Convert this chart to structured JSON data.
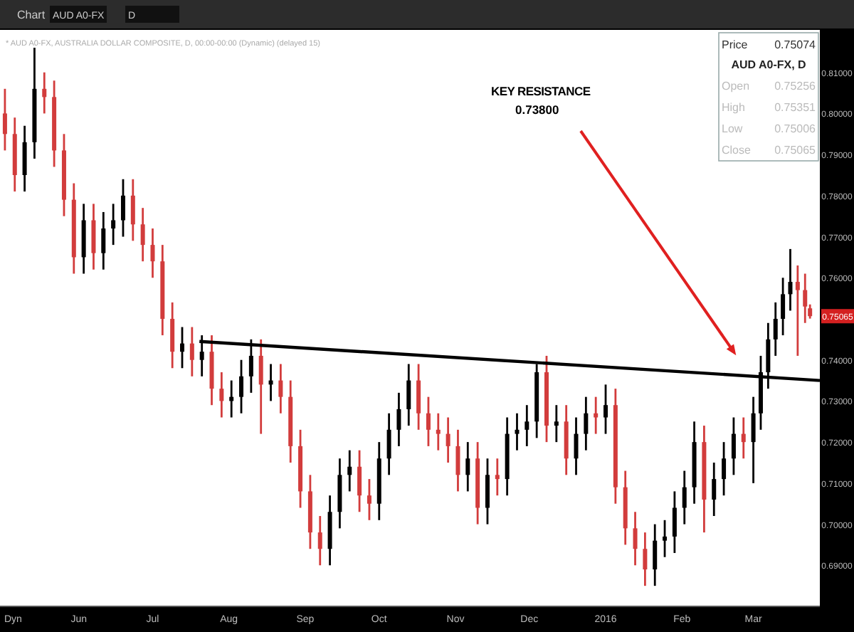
{
  "chart_data": {
    "type": "candlestick",
    "title": "* AUD A0-FX, AUSTRALIA DOLLAR COMPOSITE, D, 00:00-00:00 (Dynamic) (delayed 15)",
    "x": [
      "2015-05-02",
      "2015-05-06",
      "2015-05-10",
      "2015-05-14",
      "2015-05-18",
      "2015-05-22",
      "2015-05-26",
      "2015-05-30",
      "2015-06-03",
      "2015-06-07",
      "2015-06-11",
      "2015-06-15",
      "2015-06-19",
      "2015-06-23",
      "2015-06-27",
      "2015-07-01",
      "2015-07-05",
      "2015-07-09",
      "2015-07-13",
      "2015-07-17",
      "2015-07-21",
      "2015-07-25",
      "2015-07-29",
      "2015-08-02",
      "2015-08-06",
      "2015-08-10",
      "2015-08-14",
      "2015-08-18",
      "2015-08-22",
      "2015-08-26",
      "2015-08-30",
      "2015-09-03",
      "2015-09-07",
      "2015-09-11",
      "2015-09-15",
      "2015-09-19",
      "2015-09-23",
      "2015-09-27",
      "2015-10-01",
      "2015-10-05",
      "2015-10-09",
      "2015-10-13",
      "2015-10-17",
      "2015-10-21",
      "2015-10-25",
      "2015-10-29",
      "2015-11-02",
      "2015-11-06",
      "2015-11-10",
      "2015-11-14",
      "2015-11-18",
      "2015-11-22",
      "2015-11-26",
      "2015-11-30",
      "2015-12-04",
      "2015-12-08",
      "2015-12-12",
      "2015-12-16",
      "2015-12-20",
      "2015-12-24",
      "2015-12-28",
      "2016-01-01",
      "2016-01-05",
      "2016-01-09",
      "2016-01-13",
      "2016-01-17",
      "2016-01-21",
      "2016-01-25",
      "2016-01-29",
      "2016-02-02",
      "2016-02-06",
      "2016-02-10",
      "2016-02-14",
      "2016-02-18",
      "2016-02-22",
      "2016-02-26",
      "2016-03-01",
      "2016-03-04",
      "2016-03-07",
      "2016-03-10",
      "2016-03-13",
      "2016-03-16",
      "2016-03-19",
      "2016-03-22",
      "2016-03-24"
    ],
    "ohlc": [
      [
        0.8,
        0.806,
        0.791,
        0.795
      ],
      [
        0.795,
        0.799,
        0.781,
        0.785
      ],
      [
        0.785,
        0.797,
        0.781,
        0.793
      ],
      [
        0.793,
        0.816,
        0.789,
        0.806
      ],
      [
        0.806,
        0.81,
        0.8,
        0.804
      ],
      [
        0.804,
        0.808,
        0.787,
        0.791
      ],
      [
        0.791,
        0.795,
        0.775,
        0.779
      ],
      [
        0.779,
        0.783,
        0.761,
        0.765
      ],
      [
        0.765,
        0.778,
        0.761,
        0.774
      ],
      [
        0.774,
        0.778,
        0.762,
        0.766
      ],
      [
        0.766,
        0.776,
        0.762,
        0.772
      ],
      [
        0.772,
        0.778,
        0.768,
        0.774
      ],
      [
        0.774,
        0.784,
        0.77,
        0.78
      ],
      [
        0.78,
        0.784,
        0.769,
        0.773
      ],
      [
        0.773,
        0.777,
        0.764,
        0.768
      ],
      [
        0.768,
        0.772,
        0.76,
        0.764
      ],
      [
        0.764,
        0.768,
        0.746,
        0.75
      ],
      [
        0.75,
        0.754,
        0.738,
        0.742
      ],
      [
        0.742,
        0.748,
        0.738,
        0.744
      ],
      [
        0.744,
        0.748,
        0.736,
        0.74
      ],
      [
        0.74,
        0.746,
        0.736,
        0.742
      ],
      [
        0.742,
        0.746,
        0.729,
        0.733
      ],
      [
        0.733,
        0.737,
        0.726,
        0.73
      ],
      [
        0.73,
        0.735,
        0.726,
        0.731
      ],
      [
        0.731,
        0.74,
        0.727,
        0.736
      ],
      [
        0.736,
        0.745,
        0.732,
        0.741
      ],
      [
        0.741,
        0.745,
        0.722,
        0.734
      ],
      [
        0.734,
        0.739,
        0.73,
        0.735
      ],
      [
        0.735,
        0.739,
        0.727,
        0.731
      ],
      [
        0.731,
        0.735,
        0.715,
        0.719
      ],
      [
        0.719,
        0.723,
        0.704,
        0.708
      ],
      [
        0.708,
        0.712,
        0.694,
        0.698
      ],
      [
        0.698,
        0.702,
        0.69,
        0.694
      ],
      [
        0.694,
        0.707,
        0.69,
        0.703
      ],
      [
        0.703,
        0.716,
        0.699,
        0.712
      ],
      [
        0.712,
        0.718,
        0.708,
        0.714
      ],
      [
        0.714,
        0.718,
        0.703,
        0.707
      ],
      [
        0.707,
        0.711,
        0.701,
        0.705
      ],
      [
        0.705,
        0.72,
        0.701,
        0.716
      ],
      [
        0.716,
        0.727,
        0.712,
        0.723
      ],
      [
        0.723,
        0.732,
        0.719,
        0.728
      ],
      [
        0.728,
        0.739,
        0.724,
        0.735
      ],
      [
        0.735,
        0.739,
        0.723,
        0.727
      ],
      [
        0.727,
        0.731,
        0.719,
        0.723
      ],
      [
        0.723,
        0.727,
        0.718,
        0.722
      ],
      [
        0.722,
        0.726,
        0.715,
        0.719
      ],
      [
        0.719,
        0.723,
        0.708,
        0.712
      ],
      [
        0.712,
        0.72,
        0.708,
        0.716
      ],
      [
        0.716,
        0.72,
        0.7,
        0.704
      ],
      [
        0.704,
        0.716,
        0.7,
        0.712
      ],
      [
        0.712,
        0.716,
        0.707,
        0.711
      ],
      [
        0.711,
        0.726,
        0.707,
        0.722
      ],
      [
        0.722,
        0.727,
        0.718,
        0.723
      ],
      [
        0.723,
        0.729,
        0.719,
        0.725
      ],
      [
        0.725,
        0.739,
        0.721,
        0.737
      ],
      [
        0.737,
        0.741,
        0.72,
        0.724
      ],
      [
        0.724,
        0.729,
        0.72,
        0.725
      ],
      [
        0.725,
        0.729,
        0.712,
        0.716
      ],
      [
        0.716,
        0.726,
        0.712,
        0.722
      ],
      [
        0.722,
        0.731,
        0.718,
        0.727
      ],
      [
        0.727,
        0.731,
        0.722,
        0.726
      ],
      [
        0.726,
        0.734,
        0.722,
        0.729
      ],
      [
        0.729,
        0.733,
        0.705,
        0.709
      ],
      [
        0.709,
        0.713,
        0.695,
        0.699
      ],
      [
        0.699,
        0.703,
        0.69,
        0.694
      ],
      [
        0.694,
        0.698,
        0.685,
        0.689
      ],
      [
        0.689,
        0.7,
        0.685,
        0.696
      ],
      [
        0.696,
        0.701,
        0.692,
        0.697
      ],
      [
        0.697,
        0.708,
        0.693,
        0.704
      ],
      [
        0.704,
        0.713,
        0.7,
        0.709
      ],
      [
        0.709,
        0.725,
        0.705,
        0.72
      ],
      [
        0.72,
        0.724,
        0.698,
        0.706
      ],
      [
        0.706,
        0.715,
        0.702,
        0.711
      ],
      [
        0.711,
        0.72,
        0.707,
        0.716
      ],
      [
        0.716,
        0.726,
        0.712,
        0.722
      ],
      [
        0.722,
        0.726,
        0.716,
        0.72
      ],
      [
        0.72,
        0.731,
        0.71,
        0.727
      ],
      [
        0.727,
        0.741,
        0.723,
        0.737
      ],
      [
        0.737,
        0.749,
        0.733,
        0.745
      ],
      [
        0.745,
        0.754,
        0.741,
        0.75
      ],
      [
        0.75,
        0.76,
        0.746,
        0.756
      ],
      [
        0.756,
        0.767,
        0.752,
        0.759
      ],
      [
        0.759,
        0.763,
        0.741,
        0.757
      ],
      [
        0.757,
        0.761,
        0.749,
        0.753
      ],
      [
        0.75256,
        0.75351,
        0.75006,
        0.75065
      ]
    ],
    "colors": [
      "#d23c3c",
      "#d23c3c",
      "#000000",
      "#000000",
      "#d23c3c",
      "#d23c3c",
      "#d23c3c",
      "#d23c3c",
      "#000000",
      "#d23c3c",
      "#000000",
      "#000000",
      "#000000",
      "#d23c3c",
      "#d23c3c",
      "#d23c3c",
      "#d23c3c",
      "#d23c3c",
      "#000000",
      "#d23c3c",
      "#000000",
      "#d23c3c",
      "#d23c3c",
      "#000000",
      "#000000",
      "#000000",
      "#d23c3c",
      "#000000",
      "#d23c3c",
      "#d23c3c",
      "#d23c3c",
      "#d23c3c",
      "#d23c3c",
      "#000000",
      "#000000",
      "#000000",
      "#d23c3c",
      "#d23c3c",
      "#000000",
      "#000000",
      "#000000",
      "#000000",
      "#d23c3c",
      "#d23c3c",
      "#d23c3c",
      "#d23c3c",
      "#d23c3c",
      "#000000",
      "#d23c3c",
      "#000000",
      "#d23c3c",
      "#000000",
      "#000000",
      "#000000",
      "#000000",
      "#d23c3c",
      "#000000",
      "#d23c3c",
      "#000000",
      "#000000",
      "#d23c3c",
      "#000000",
      "#d23c3c",
      "#d23c3c",
      "#d23c3c",
      "#d23c3c",
      "#000000",
      "#000000",
      "#000000",
      "#000000",
      "#000000",
      "#d23c3c",
      "#000000",
      "#000000",
      "#000000",
      "#d23c3c",
      "#000000",
      "#000000",
      "#000000",
      "#000000",
      "#000000",
      "#000000",
      "#d23c3c",
      "#d23c3c",
      "#d23c3c"
    ],
    "series": [
      {
        "type": "line",
        "color": "#000000",
        "x": [
          "2015-07-20",
          "2016-03-28"
        ],
        "values": [
          0.7445,
          0.735
        ]
      }
    ],
    "xlim": [
      "2015-04-30",
      "2016-03-28"
    ],
    "xticks": [
      {
        "value": "2015-06-01",
        "label": "Jun"
      },
      {
        "value": "2015-07-01",
        "label": "Jul"
      },
      {
        "value": "2015-08-01",
        "label": "Aug"
      },
      {
        "value": "2015-09-01",
        "label": "Sep"
      },
      {
        "value": "2015-10-01",
        "label": "Oct"
      },
      {
        "value": "2015-11-01",
        "label": "Nov"
      },
      {
        "value": "2015-12-01",
        "label": "Dec"
      },
      {
        "value": "2016-01-01",
        "label": "2016"
      },
      {
        "value": "2016-02-01",
        "label": "Feb"
      },
      {
        "value": "2016-03-01",
        "label": "Mar"
      }
    ],
    "ylim": [
      0.68,
      0.82
    ],
    "yticks": [
      {
        "value": 0.69,
        "label": "0.69000"
      },
      {
        "value": 0.7,
        "label": "0.70000"
      },
      {
        "value": 0.71,
        "label": "0.71000"
      },
      {
        "value": 0.72,
        "label": "0.72000"
      },
      {
        "value": 0.73,
        "label": "0.73000"
      },
      {
        "value": 0.74,
        "label": "0.74000"
      },
      {
        "value": 0.76,
        "label": "0.76000"
      },
      {
        "value": 0.77,
        "label": "0.77000"
      },
      {
        "value": 0.78,
        "label": "0.78000"
      },
      {
        "value": 0.79,
        "label": "0.79000"
      },
      {
        "value": 0.8,
        "label": "0.80000"
      },
      {
        "value": 0.81,
        "label": "0.81000"
      }
    ],
    "annotations": [
      "KEY RESISTANCE",
      "0.73800",
      "Price",
      "0.75074",
      "AUD A0-FX, D",
      "Open",
      "0.75256",
      "High",
      "0.75351",
      "Low",
      "0.75006",
      "Close",
      "0.75065",
      {
        "text": "0.75065",
        "x": "2016-03-24",
        "y": 0.75065
      },
      "Chart",
      "AUD A0-FX",
      "D",
      "Dyn"
    ]
  }
}
